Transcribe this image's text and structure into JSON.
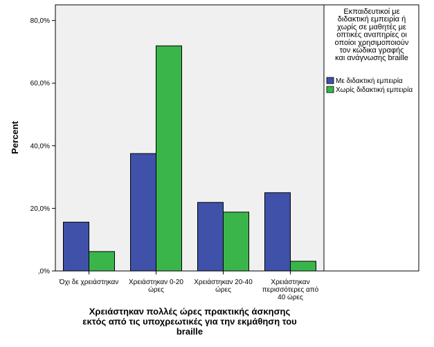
{
  "chart_data": {
    "type": "bar",
    "categories": [
      [
        "Όχι δε χρειάστηκαν"
      ],
      [
        "Χρειάστηκαν 0-20",
        "ώρες"
      ],
      [
        "Χρειάστηκαν 20-40",
        "ώρες"
      ],
      [
        "Χρειάστηκαν",
        "περισσότερες από",
        "40 ώρες"
      ]
    ],
    "series": [
      {
        "name": "Με διδακτική εμπειρία",
        "color": "#3f51a8",
        "values": [
          15.6,
          37.5,
          21.9,
          25.0
        ]
      },
      {
        "name": "Χωρίς διδακτική εμπειρία",
        "color": "#3ab54a",
        "values": [
          6.2,
          71.9,
          18.8,
          3.1
        ]
      }
    ],
    "ylim": [
      0,
      85
    ],
    "yticks": [
      {
        "value": 0,
        "label": ",0%"
      },
      {
        "value": 20,
        "label": "20,0%"
      },
      {
        "value": 40,
        "label": "40,0%"
      },
      {
        "value": 60,
        "label": "60,0%"
      },
      {
        "value": 80,
        "label": "80,0%"
      }
    ],
    "ylabel": "Percent",
    "xlabel_lines": [
      "Χρειάστηκαν πολλές ώρες πρακτικής άσκησης",
      "εκτός από τις υποχρεωτικές για την εκμάθηση του",
      "braille"
    ],
    "legend_title_lines": [
      "Εκπαιδευτικοί με",
      "διδακτική εμπειρία ή",
      "χωρίς σε μαθητές με",
      "οπτικές αναπηρίες οι",
      "οποίοι χρησιμοποιούν",
      "τον κώδικα γραφής",
      "και ανάγνωσης braille"
    ],
    "legend_position": "right",
    "grid": false,
    "plot_background": "#f0f0f0"
  }
}
